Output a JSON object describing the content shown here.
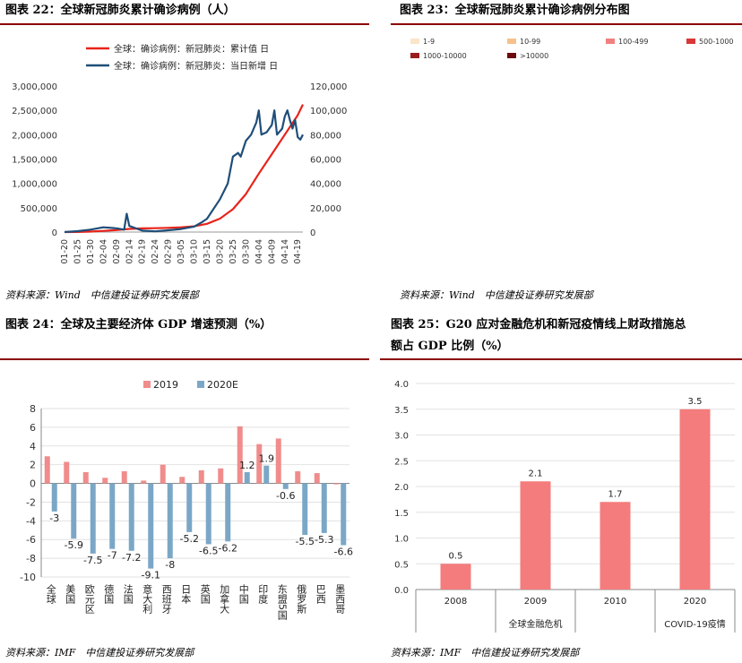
{
  "panels": [
    {
      "id": "fig22",
      "title": "图表 22：全球新冠肺炎累计确诊病例（人）",
      "source": "资料来源：Wind　中信建投证券研究发展部",
      "chart_data": {
        "type": "line",
        "title": "",
        "series": [
          {
            "name": "全球：确诊病例：新冠肺炎：累计值 日",
            "axis": "left",
            "color": "#e8231a",
            "x": [
              "01-20",
              "01-25",
              "01-30",
              "02-04",
              "02-09",
              "02-14",
              "02-19",
              "02-24",
              "02-29",
              "03-05",
              "03-10",
              "03-15",
              "03-20",
              "03-25",
              "03-30",
              "04-04",
              "04-09",
              "04-14",
              "04-19",
              "04-21"
            ],
            "values": [
              300,
              2000,
              9700,
              24500,
              40000,
              64000,
              75700,
              79400,
              86000,
              97000,
              118000,
              170000,
              276000,
              470000,
              780000,
              1200000,
              1600000,
              2000000,
              2400000,
              2620000
            ]
          },
          {
            "name": "全球：确诊病例：新冠肺炎：当日新增 日",
            "axis": "right",
            "color": "#1f4e79",
            "x": [
              "01-20",
              "01-25",
              "01-30",
              "02-04",
              "02-09",
              "02-12",
              "02-13",
              "02-14",
              "02-19",
              "02-24",
              "02-29",
              "03-05",
              "03-10",
              "03-13",
              "03-15",
              "03-20",
              "03-23",
              "03-25",
              "03-27",
              "03-28",
              "03-30",
              "04-01",
              "04-02",
              "04-03",
              "04-04",
              "04-05",
              "04-07",
              "04-09",
              "04-10",
              "04-11",
              "04-13",
              "04-14",
              "04-15",
              "04-16",
              "04-17",
              "04-18",
              "04-19",
              "04-20",
              "04-21"
            ],
            "values": [
              0,
              700,
              2000,
              3900,
              3100,
              2000,
              15000,
              5000,
              1200,
              600,
              1500,
              2500,
              4500,
              8000,
              11000,
              27000,
              40000,
              62000,
              65000,
              62000,
              75000,
              80000,
              85000,
              90000,
              100000,
              80000,
              82000,
              88000,
              100000,
              80000,
              85000,
              95000,
              100000,
              92000,
              85000,
              92000,
              78000,
              76000,
              80000
            ]
          }
        ],
        "x_tick_labels": [
          "01-20",
          "01-25",
          "01-30",
          "02-04",
          "02-09",
          "02-14",
          "02-19",
          "02-24",
          "02-29",
          "03-05",
          "03-10",
          "03-15",
          "03-20",
          "03-25",
          "03-30",
          "04-04",
          "04-09",
          "04-14",
          "04-19"
        ],
        "y_left_ticks": [
          "0",
          "500,000",
          "1,000,000",
          "1,500,000",
          "2,000,000",
          "2,500,000",
          "3,000,000"
        ],
        "y_right_ticks": [
          "0",
          "20,000",
          "40,000",
          "60,000",
          "80,000",
          "100,000",
          "120,000"
        ],
        "ylim_left": [
          0,
          3000000
        ],
        "ylim_right": [
          0,
          120000
        ],
        "legend_position": "top-center",
        "grid": false
      }
    },
    {
      "id": "fig23",
      "title": "图表 23：全球新冠肺炎累计确诊病例分布图",
      "source": "资料来源：Wind　中信建投证券研究发展部",
      "legend": [
        {
          "label": "1-9",
          "color": "#fbe5c8"
        },
        {
          "label": "10-99",
          "color": "#f7c18c"
        },
        {
          "label": "100-499",
          "color": "#f08080"
        },
        {
          "label": "500-1000",
          "color": "#d93838"
        },
        {
          "label": "1000-10000",
          "color": "#9b1c1c"
        },
        {
          "label": ">10000",
          "color": "#6b0b0b"
        }
      ],
      "ocean_color": "#ffffff",
      "chart_data": {
        "type": "map"
      }
    },
    {
      "id": "fig24",
      "title": "图表 24：全球及主要经济体 GDP 增速预测（%）",
      "source": "资料来源：IMF　中信建投证券研究发展部",
      "chart_data": {
        "type": "bar",
        "categories": [
          "全球",
          "美国",
          "欧元区",
          "德国",
          "法国",
          "意大利",
          "西班牙",
          "日本",
          "英国",
          "加拿大",
          "中国",
          "印度",
          "东盟5国",
          "俄罗斯",
          "巴西",
          "墨西哥"
        ],
        "series": [
          {
            "name": "2019",
            "color": "#f08c8c",
            "values": [
              2.9,
              2.3,
              1.2,
              0.6,
              1.3,
              0.3,
              2.0,
              0.7,
              1.4,
              1.6,
              6.1,
              4.2,
              4.8,
              1.3,
              1.1,
              -0.1
            ]
          },
          {
            "name": "2020E",
            "color": "#7ba7c7",
            "values": [
              -3.0,
              -5.9,
              -7.5,
              -7.0,
              -7.2,
              -9.1,
              -8.0,
              -5.2,
              -6.5,
              -6.2,
              1.2,
              1.9,
              -0.6,
              -5.5,
              -5.3,
              -6.6
            ]
          }
        ],
        "data_labels_2020E": [
          "-3",
          "-5.9",
          "-7.5",
          "-7",
          "-7.2",
          "-9.1",
          "-8",
          "-5.2",
          "-6.5",
          "-6.2",
          "1.2",
          "1.9",
          "-0.6",
          "-5.5",
          "-5.3",
          "-6.6"
        ],
        "y_ticks": [
          "-10",
          "-8",
          "-6",
          "-4",
          "-2",
          "0",
          "2",
          "4",
          "6",
          "8"
        ],
        "ylim": [
          -10,
          8
        ],
        "legend_position": "top-center",
        "grid": true
      }
    },
    {
      "id": "fig25",
      "title_line1": "图表 25：G20 应对金融危机和新冠疫情线上财政措施总",
      "title_line2": "额占 GDP 比例（%）",
      "source": "资料来源：IMF　中信建投证券研究发展部",
      "chart_data": {
        "type": "bar",
        "categories": [
          "2008",
          "2009",
          "2010",
          "2020"
        ],
        "groups": [
          "全球金融危机",
          "COVID-19疫情"
        ],
        "values": [
          0.5,
          2.1,
          1.7,
          3.5
        ],
        "data_labels": [
          "0.5",
          "2.1",
          "1.7",
          "3.5"
        ],
        "color": "#f47c7c",
        "y_ticks": [
          "0.0",
          "0.5",
          "1.0",
          "1.5",
          "2.0",
          "2.5",
          "3.0",
          "3.5",
          "4.0"
        ],
        "ylim": [
          0,
          4
        ],
        "grid": true
      }
    }
  ]
}
